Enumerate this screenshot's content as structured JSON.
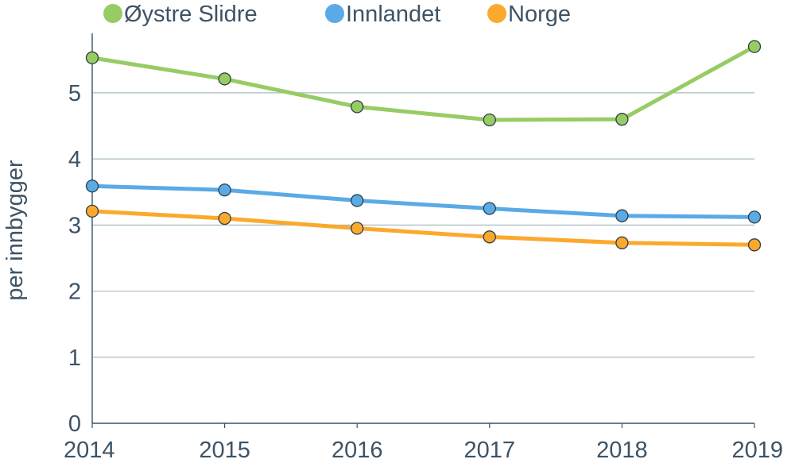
{
  "chart_data": {
    "type": "line",
    "title": "",
    "xlabel": "",
    "ylabel": "per innbygger",
    "x": [
      "2014",
      "2015",
      "2016",
      "2017",
      "2018",
      "2019"
    ],
    "yticks": [
      "0",
      "1",
      "2",
      "3",
      "4",
      "5"
    ],
    "ylim": [
      0,
      5.9
    ],
    "grid": true,
    "legend_position": "top",
    "series": [
      {
        "name": "Øystre Slidre",
        "color": "#97cc64",
        "values": [
          5.53,
          5.21,
          4.79,
          4.59,
          4.6,
          5.7
        ]
      },
      {
        "name": "Innlandet",
        "color": "#5aaae6",
        "values": [
          3.59,
          3.53,
          3.37,
          3.25,
          3.14,
          3.12
        ]
      },
      {
        "name": "Norge",
        "color": "#fba92d",
        "values": [
          3.21,
          3.1,
          2.95,
          2.82,
          2.73,
          2.7
        ]
      }
    ]
  }
}
